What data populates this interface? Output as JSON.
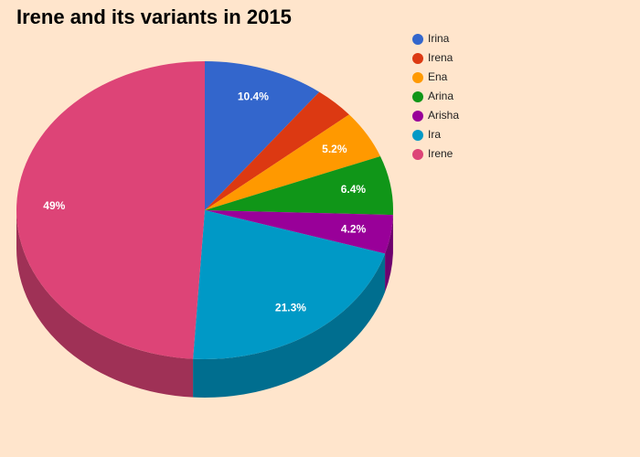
{
  "chart_data": {
    "type": "pie3d",
    "title": "Irene and its variants in 2015",
    "categories": [
      "Irina",
      "Irena",
      "Ena",
      "Arina",
      "Arisha",
      "Ira",
      "Irene"
    ],
    "values": [
      10.4,
      3.5,
      5.2,
      6.4,
      4.2,
      21.3,
      49
    ],
    "value_labels": [
      "10.4%",
      null,
      "5.2%",
      "6.4%",
      "4.2%",
      "21.3%",
      "49%"
    ],
    "colors": [
      "#3366cc",
      "#dc3912",
      "#ff9900",
      "#109618",
      "#990099",
      "#0099c6",
      "#dd4477"
    ],
    "legend": "right"
  }
}
